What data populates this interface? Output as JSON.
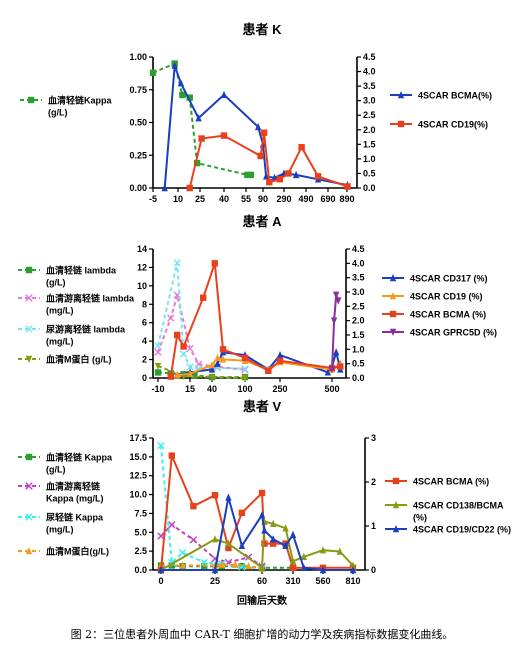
{
  "figure": {
    "x_axis_label": "回输后天数",
    "caption": "图 2：三位患者外周血中 CAR-T 细胞扩增的动力学及疾病指标数据变化曲线。"
  },
  "chart_data": [
    {
      "type": "line",
      "title": "患者 K",
      "x_tick_labels": [
        "-5",
        "10",
        "25",
        "40",
        "55",
        "90",
        "290",
        "490",
        "690",
        "890"
      ],
      "yleft_ticks": [
        "0.00",
        "0.25",
        "0.50",
        "0.75",
        "1.00"
      ],
      "yleft_range": [
        0,
        1
      ],
      "yright_ticks": [
        "0.0",
        "0.5",
        "1.0",
        "1.5",
        "2.0",
        "2.5",
        "3.0",
        "3.5",
        "4.0",
        "4.5"
      ],
      "yright_range": [
        0,
        4.5
      ],
      "series": [
        {
          "name": "血清轻链Kappa\n(g/L)",
          "axis": "left",
          "color": "#2e9e2e",
          "style": "dashed",
          "marker": "square",
          "x": [
            "-5",
            "8",
            "13",
            "18",
            "23",
            "58",
            "65"
          ],
          "y": [
            0.88,
            0.95,
            0.71,
            0.69,
            0.19,
            0.1,
            0.1
          ]
        },
        {
          "name": "4SCAR BCMA(%)",
          "axis": "right",
          "color": "#1a3fbf",
          "style": "solid",
          "marker": "triangle",
          "x": [
            "2",
            "8",
            "12",
            "24",
            "40",
            "80",
            "90",
            "120",
            "200",
            "290",
            "400",
            "600",
            "895"
          ],
          "y": [
            0,
            4.2,
            3.6,
            2.4,
            3.2,
            2.1,
            1.5,
            0.4,
            0.35,
            0.5,
            0.45,
            0.3,
            0.1
          ]
        },
        {
          "name": "4SCAR CD19(%)",
          "axis": "right",
          "color": "#e8401c",
          "style": "solid",
          "marker": "square",
          "x": [
            "18",
            "26",
            "40",
            "85",
            "100",
            "150",
            "250",
            "330",
            "450",
            "600",
            "895"
          ],
          "y": [
            0,
            1.7,
            1.8,
            1.1,
            1.9,
            0.2,
            0.3,
            0.5,
            1.4,
            0.4,
            0.05
          ]
        }
      ]
    },
    {
      "type": "line",
      "title": "患者 A",
      "x_tick_labels": [
        "-10",
        "15",
        "40",
        "100",
        "250",
        "500"
      ],
      "yleft_ticks": [
        "0",
        "2",
        "4",
        "6",
        "8",
        "10",
        "12",
        "14"
      ],
      "yleft_range": [
        0,
        14
      ],
      "yright_ticks": [
        "0.0",
        "0.5",
        "1.0",
        "1.5",
        "2.0",
        "2.5",
        "3.0",
        "3.5",
        "4.0",
        "4.5"
      ],
      "yright_range": [
        0,
        4.5
      ],
      "series": [
        {
          "name": "血清轻链 lambda\n(g/L)",
          "axis": "left",
          "color": "#2e9e2e",
          "style": "dashed",
          "marker": "square",
          "x": [
            "-10",
            "0",
            "10",
            "15",
            "20",
            "40",
            "100"
          ],
          "y": [
            0.6,
            0.5,
            0.4,
            0.4,
            0.3,
            0.1,
            0.1
          ]
        },
        {
          "name": "血清游离轻链 lambda\n(mg/L)",
          "axis": "left",
          "color": "#e879d8",
          "style": "dashed",
          "marker": "x",
          "x": [
            "-10",
            "0",
            "5",
            "15",
            "25",
            "50",
            "100"
          ],
          "y": [
            2.8,
            6.5,
            9.0,
            3.2,
            1.5,
            1.2,
            0.9
          ]
        },
        {
          "name": "尿游离轻链 lambda\n(mg/L)",
          "axis": "left",
          "color": "#74e6ef",
          "style": "dashed",
          "marker": "x",
          "x": [
            "-10",
            "5",
            "10",
            "15",
            "25",
            "50",
            "100"
          ],
          "y": [
            3.5,
            12.5,
            2.6,
            1.2,
            1.0,
            1.1,
            1.0
          ]
        },
        {
          "name": "血清M蛋白 (g/L)",
          "axis": "left",
          "color": "#8a9a15",
          "style": "dashed",
          "marker": "triangle-down",
          "x": [
            "-10",
            "10",
            "40",
            "100"
          ],
          "y": [
            1.3,
            0.2,
            0.1,
            0.0
          ]
        },
        {
          "name": "4SCAR CD317 (%)",
          "axis": "right",
          "color": "#1a3fbf",
          "style": "solid",
          "marker": "triangle",
          "x": [
            "5",
            "15",
            "40",
            "50",
            "60",
            "100",
            "200",
            "250",
            "480",
            "500",
            "520",
            "540"
          ],
          "y": [
            0.1,
            0.2,
            0.3,
            0.5,
            0.9,
            0.8,
            0.3,
            0.8,
            0.2,
            0.4,
            0.9,
            0.3
          ]
        },
        {
          "name": "4SCAR CD19 (%)",
          "axis": "right",
          "color": "#f39a1f",
          "style": "solid",
          "marker": "triangle",
          "x": [
            "5",
            "15",
            "40",
            "50",
            "60",
            "100",
            "200",
            "250",
            "500",
            "540"
          ],
          "y": [
            0.1,
            0.15,
            0.45,
            0.7,
            0.65,
            0.6,
            0.3,
            0.55,
            0.3,
            0.5
          ]
        },
        {
          "name": "4SCAR BCMA (%)",
          "axis": "right",
          "color": "#e8401c",
          "style": "solid",
          "marker": "square",
          "x": [
            "0",
            "5",
            "10",
            "30",
            "45",
            "60",
            "100",
            "200",
            "250",
            "500",
            "540"
          ],
          "y": [
            0.05,
            1.5,
            1.1,
            2.8,
            4.0,
            1.0,
            0.7,
            0.25,
            0.6,
            0.35,
            0.4
          ]
        },
        {
          "name": "4SCAR GPRC5D (%)",
          "axis": "right",
          "color": "#8a2ea0",
          "style": "solid",
          "marker": "triangle-down",
          "x": [
            "500",
            "510",
            "520",
            "530"
          ],
          "y": [
            0.3,
            2.0,
            2.9,
            2.7
          ]
        }
      ]
    },
    {
      "type": "line",
      "title": "患者 V",
      "x_tick_labels": [
        "0",
        "25",
        "60",
        "310",
        "560",
        "810"
      ],
      "yleft_ticks": [
        "0.0",
        "2.5",
        "5.0",
        "7.5",
        "10.0",
        "12.5",
        "15.0",
        "17.5"
      ],
      "yleft_range": [
        0,
        17.5
      ],
      "yright_ticks": [
        "0",
        "1",
        "2",
        "3"
      ],
      "yright_range": [
        0,
        3
      ],
      "series": [
        {
          "name": "血清轻链 Kappa\n(g/L)",
          "axis": "left",
          "color": "#2e9e2e",
          "style": "dashed",
          "marker": "square",
          "x": [
            "0",
            "5",
            "10",
            "20",
            "30",
            "45",
            "60",
            "310"
          ],
          "y": [
            0.6,
            0.6,
            0.5,
            0.5,
            0.5,
            0.5,
            0.3,
            0.3
          ]
        },
        {
          "name": "血清游离轻链\nKappa (mg/L)",
          "axis": "left",
          "color": "#c33fc6",
          "style": "dashed",
          "marker": "x",
          "x": [
            "0",
            "5",
            "15",
            "25",
            "35",
            "50",
            "60"
          ],
          "y": [
            4.5,
            6.0,
            4.0,
            1.5,
            1.0,
            1.7,
            0.5
          ]
        },
        {
          "name": "尿轻链 Kappa\n(mg/L)",
          "axis": "left",
          "color": "#3af0f0",
          "style": "dashed",
          "marker": "x",
          "x": [
            "0",
            "5",
            "10",
            "20",
            "30",
            "45",
            "60"
          ],
          "y": [
            16.5,
            1.0,
            2.3,
            1.0,
            0.8,
            0.4,
            0.2
          ]
        },
        {
          "name": "血清M蛋白(g/L)",
          "axis": "left",
          "color": "#f39a1f",
          "style": "dashed",
          "marker": "triangle",
          "x": [
            "0",
            "10",
            "25",
            "30",
            "40",
            "50",
            "60"
          ],
          "y": [
            0.6,
            0.6,
            0.6,
            0.7,
            0.7,
            0.5,
            0.2
          ]
        },
        {
          "name": "4SCAR BCMA (%)",
          "axis": "right",
          "color": "#e8401c",
          "style": "solid",
          "marker": "square",
          "x": [
            "0",
            "5",
            "15",
            "25",
            "35",
            "45",
            "60",
            "80",
            "150",
            "250",
            "310",
            "560",
            "810"
          ],
          "y": [
            0,
            2.6,
            1.45,
            1.7,
            0.5,
            1.3,
            1.75,
            0.6,
            0.6,
            0.6,
            0.05,
            0.05,
            0.05
          ]
        },
        {
          "name": "4SCAR CD138/BCMA\n(%)",
          "axis": "right",
          "color": "#8a9a15",
          "style": "solid",
          "marker": "triangle",
          "x": [
            "0",
            "25",
            "35",
            "60",
            "80",
            "150",
            "250",
            "310",
            "400",
            "560",
            "700",
            "810"
          ],
          "y": [
            0,
            0.7,
            0.6,
            0.05,
            1.1,
            1.05,
            0.95,
            0.2,
            0.3,
            0.45,
            0.42,
            0.1
          ]
        },
        {
          "name": "4SCAR CD19/CD22 (%)",
          "axis": "right",
          "color": "#1a3fbf",
          "style": "solid",
          "marker": "triangle",
          "x": [
            "0",
            "25",
            "35",
            "45",
            "60",
            "80",
            "150",
            "250",
            "310",
            "400",
            "560",
            "810"
          ],
          "y": [
            0,
            0,
            1.65,
            0.55,
            1.25,
            0.9,
            0.7,
            0.55,
            0.8,
            0.05,
            0,
            0
          ]
        }
      ]
    }
  ]
}
